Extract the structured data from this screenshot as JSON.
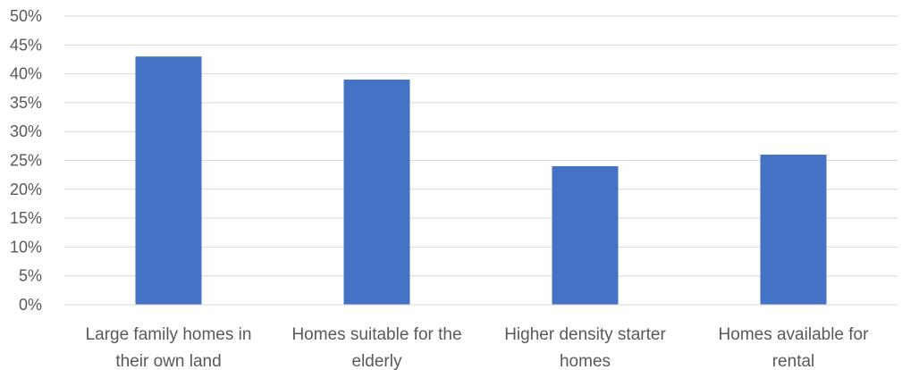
{
  "chart_data": {
    "type": "bar",
    "categories": [
      [
        "Large family homes in",
        "their own land"
      ],
      [
        "Homes suitable for the",
        "elderly"
      ],
      [
        "Higher density starter",
        "homes"
      ],
      [
        "Homes available for",
        "rental"
      ]
    ],
    "values": [
      43,
      39,
      24,
      26
    ],
    "ylim": [
      0,
      50
    ],
    "yticks": [
      "0%",
      "5%",
      "10%",
      "15%",
      "20%",
      "25%",
      "30%",
      "35%",
      "40%",
      "45%",
      "50%"
    ],
    "grid": true,
    "legend": "none",
    "bar_color": "#4472c4"
  }
}
